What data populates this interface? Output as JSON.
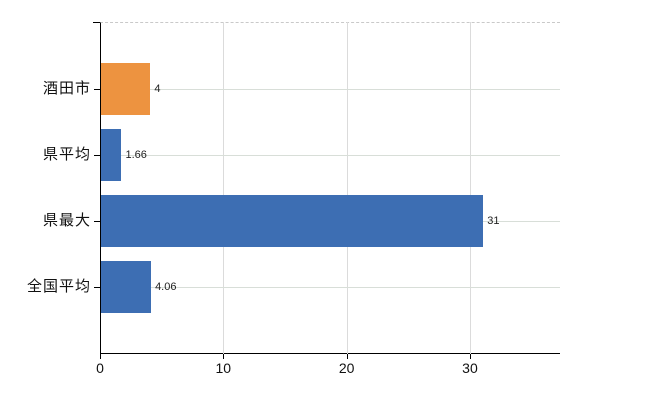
{
  "chart_data": {
    "type": "bar",
    "orientation": "horizontal",
    "title": "",
    "xlabel": "",
    "ylabel": "",
    "categories": [
      "酒田市",
      "県平均",
      "県最大",
      "全国平均"
    ],
    "values": [
      4,
      1.66,
      31,
      4.06
    ],
    "value_labels": [
      "4",
      "1.66",
      "31",
      "4.06"
    ],
    "bar_colors": [
      "#ed9340",
      "#3d6eb3",
      "#3d6eb3",
      "#3d6eb3"
    ],
    "x_ticks": [
      {
        "value": 0,
        "label": "0"
      },
      {
        "value": 10,
        "label": "10"
      },
      {
        "value": 20,
        "label": "20"
      },
      {
        "value": 30,
        "label": "30"
      }
    ],
    "xlim": [
      0,
      37.3
    ],
    "grid": true,
    "legend_position": "none"
  },
  "colors": {
    "bar_orange": "#ed9340",
    "bar_blue": "#3d6eb3",
    "axis": "#000000",
    "grid_horizontal": "#d8ded8",
    "grid_vertical": "#dbdbdb",
    "plot_top_dashed": "#c9c9c9",
    "text": "#222222",
    "background": "#ffffff"
  }
}
